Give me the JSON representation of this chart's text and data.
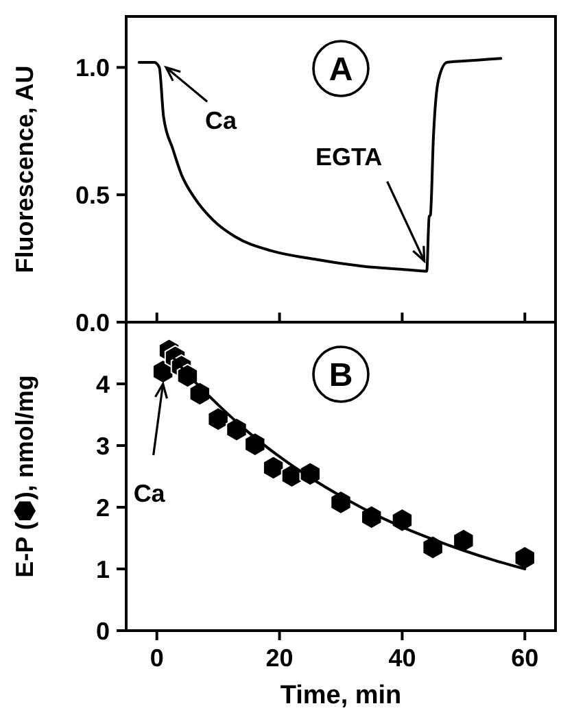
{
  "chart_data": [
    {
      "type": "line",
      "ylabel": "Fluorescence, AU",
      "xlim": [
        -5,
        65
      ],
      "ylim": [
        0,
        1.2
      ],
      "xticks": [
        0,
        20,
        40,
        60
      ],
      "yticks": [
        {
          "value": 0,
          "label": "0.0"
        },
        0.5,
        {
          "value": 1,
          "label": "1.0"
        }
      ],
      "tick_labels": "y",
      "grid": false,
      "annotations": [
        "A",
        {
          "text": "Ca",
          "x": 1.5,
          "y": 1.0
        },
        {
          "text": "EGTA",
          "x": 43.6,
          "y": 0.24
        }
      ],
      "series": [
        {
          "color": "#000000",
          "x": [
            -2.9,
            -1.5,
            -0.4,
            0.4,
            1.1,
            2.6,
            4.0,
            6.2,
            9.2,
            12.8,
            18.7,
            26,
            33.4,
            40.7,
            44,
            44.4,
            44.6,
            45.1,
            45.9,
            47.3,
            50,
            53,
            56.1
          ],
          "values": [
            1.02,
            1.02,
            1.02,
            1.0,
            0.805,
            0.68,
            0.58,
            0.486,
            0.4,
            0.335,
            0.28,
            0.246,
            0.22,
            0.206,
            0.2,
            0.415,
            0.42,
            0.73,
            0.95,
            1.02,
            1.025,
            1.03,
            1.035
          ]
        }
      ]
    },
    {
      "type": "scatter",
      "xlabel": "Time, min",
      "ylabel": "E-P (⬢), nmol/mg",
      "xlim": [
        -5,
        65
      ],
      "ylim": [
        0,
        5
      ],
      "xticks": [
        0,
        20,
        40,
        60
      ],
      "yticks": [
        0,
        1,
        2,
        3,
        4
      ],
      "grid": false,
      "annotations": [
        "B",
        {
          "text": "Ca",
          "x": 1,
          "y": 4.0
        }
      ],
      "series": [
        {
          "color": "#000000",
          "x": [
            1,
            2,
            3,
            4,
            5,
            7,
            10,
            13,
            16,
            19,
            22,
            25,
            30,
            35,
            40,
            45,
            50,
            60
          ],
          "values": [
            4.2,
            4.54,
            4.43,
            4.28,
            4.13,
            3.84,
            3.43,
            3.26,
            3.02,
            2.64,
            2.51,
            2.54,
            2.08,
            1.84,
            1.79,
            1.35,
            1.46,
            1.18
          ]
        },
        {
          "type": "line",
          "color": "#000000",
          "x": [
            2,
            5,
            10,
            15,
            20,
            25,
            30,
            35,
            40,
            45,
            50,
            55,
            60
          ],
          "values": [
            4.5,
            4.16,
            3.66,
            3.21,
            2.82,
            2.48,
            2.18,
            1.91,
            1.68,
            1.48,
            1.3,
            1.14,
            1.0
          ]
        }
      ]
    }
  ]
}
